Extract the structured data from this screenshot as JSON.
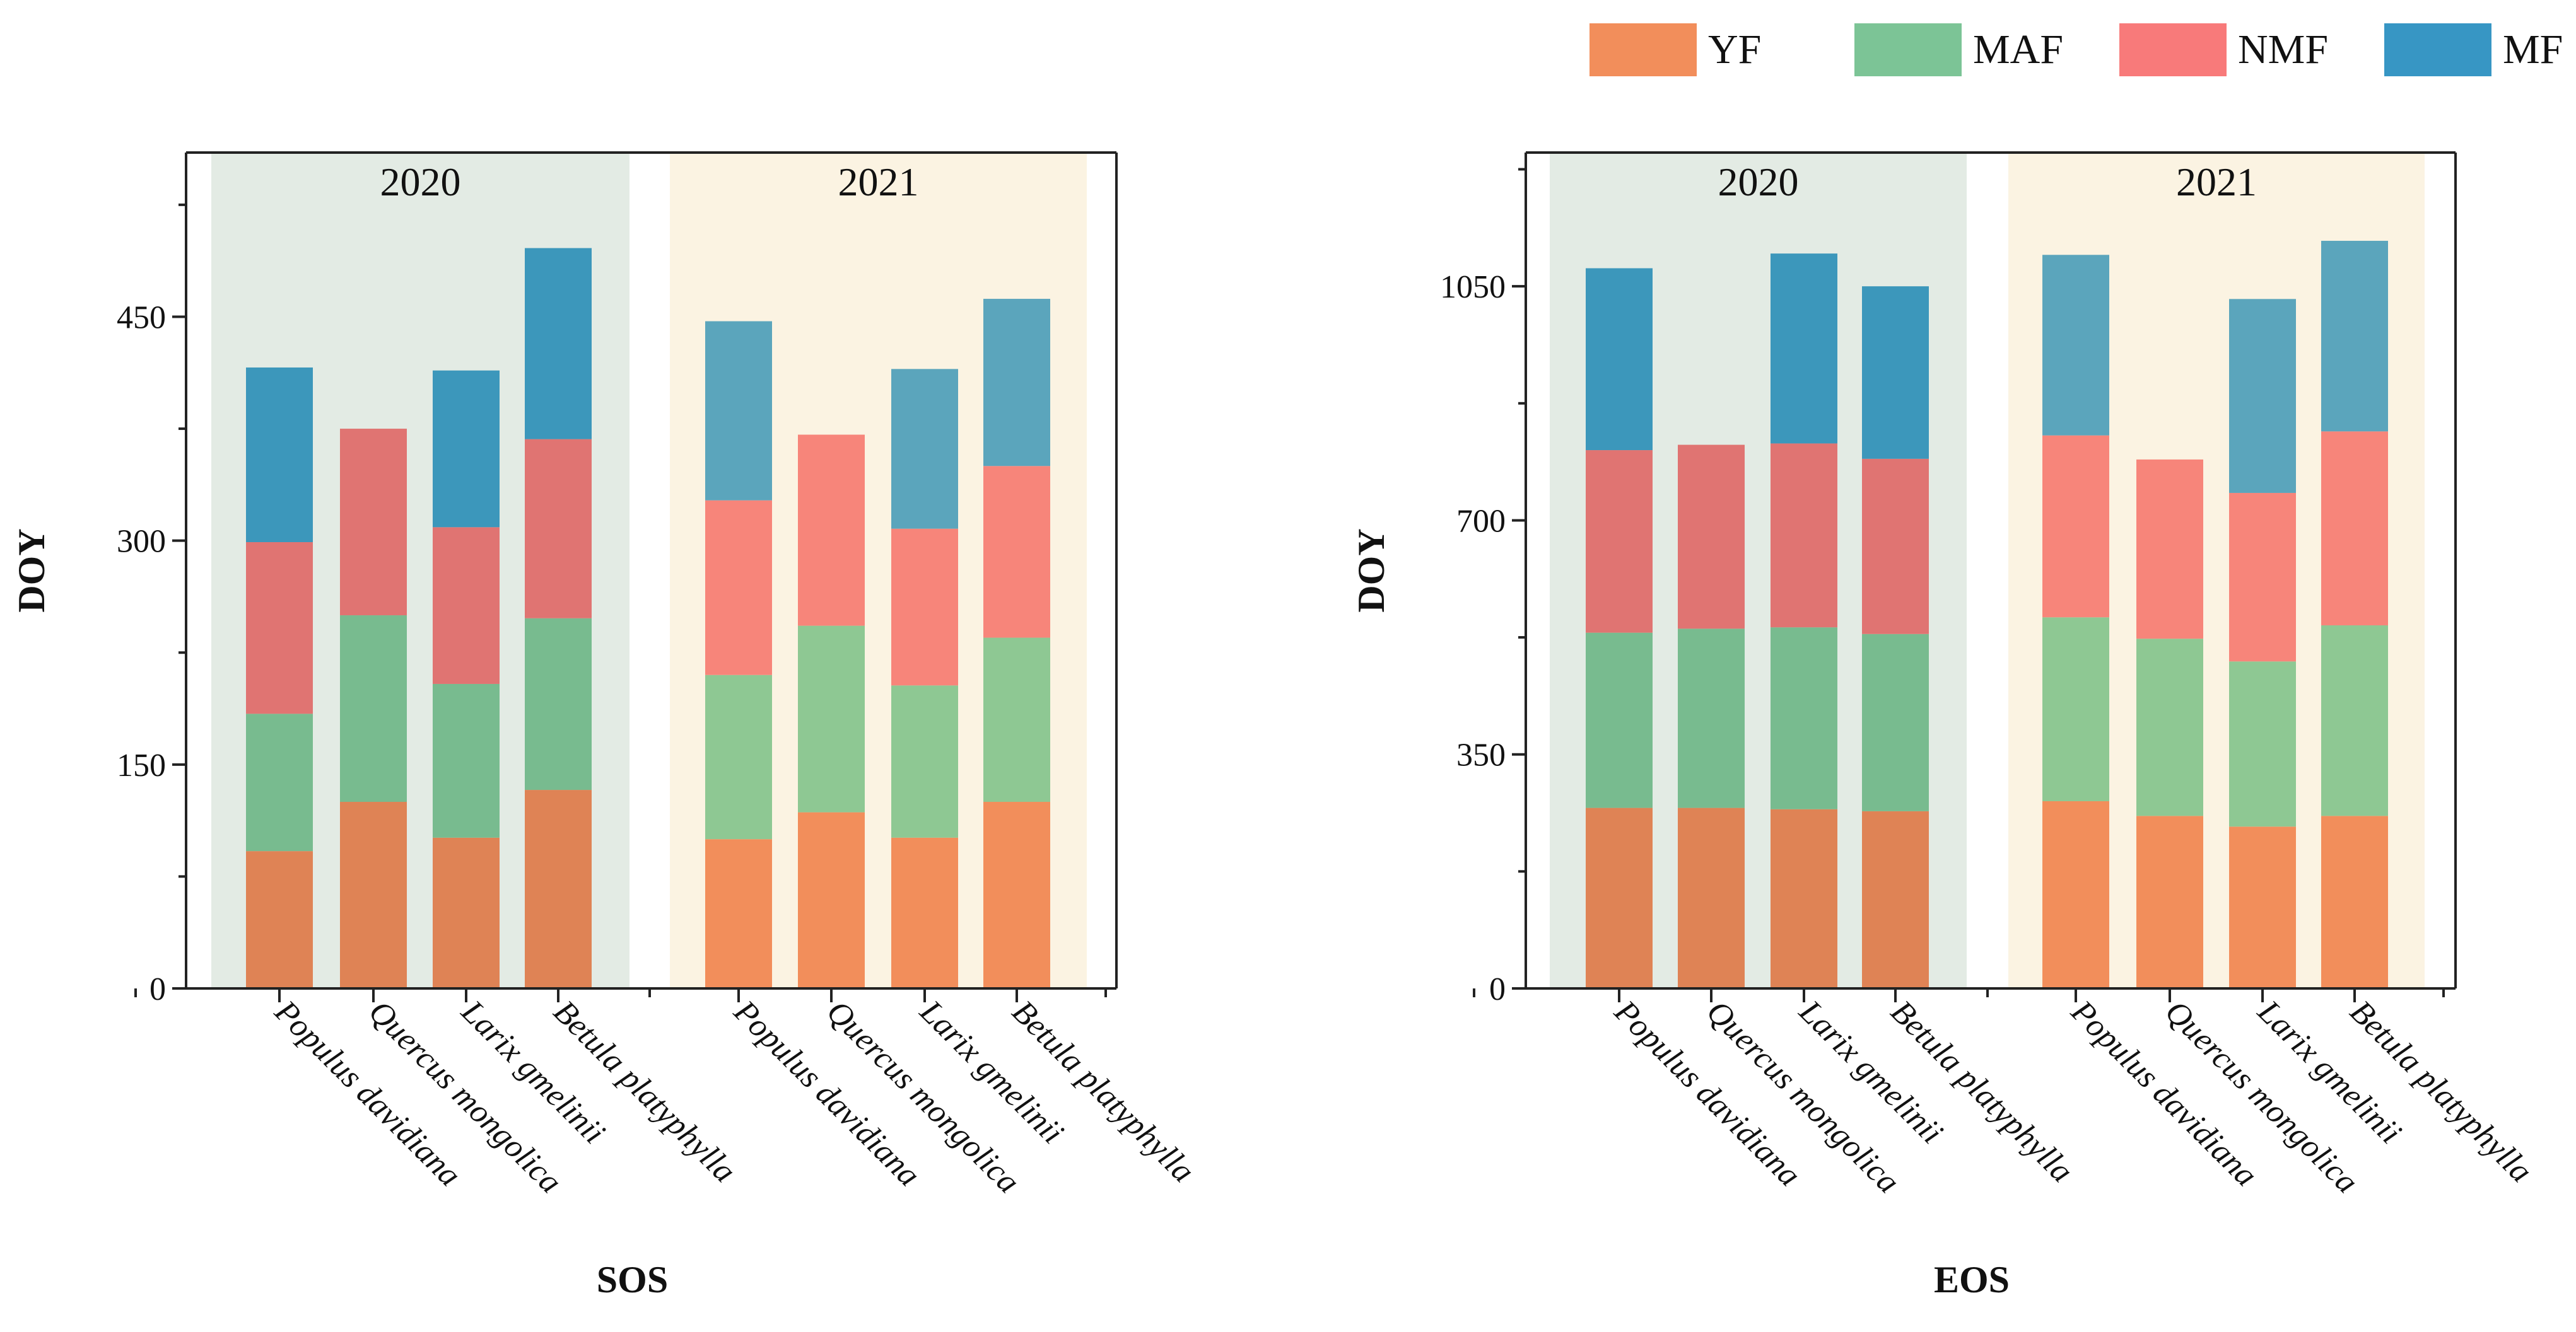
{
  "legend": [
    {
      "key": "YF",
      "label": "YF",
      "color": "#F28E5B"
    },
    {
      "key": "MAF",
      "label": "MAF",
      "color": "#7CC496"
    },
    {
      "key": "NMF",
      "label": "NMF",
      "color": "#F87A7A"
    },
    {
      "key": "MF",
      "label": "MF",
      "color": "#3796C4"
    }
  ],
  "chart_data": [
    {
      "type": "bar",
      "stacked": true,
      "xlabel": "SOS",
      "ylabel": "DOY",
      "ylim": [
        0,
        560
      ],
      "yticks": [
        0,
        150,
        300,
        450
      ],
      "groups": [
        {
          "label": "2020",
          "background": "#E3EBE4",
          "categories": [
            "Populus davidiana",
            "Quercus mongolica",
            "Larix gmelinii",
            "Betula platyphylla"
          ],
          "colors": {
            "YF": "#DF8355",
            "MAF": "#78BB8F",
            "NMF": "#E07472",
            "MF": "#3C97BB"
          },
          "series": [
            {
              "name": "YF",
              "values": [
                92,
                125,
                101,
                133
              ]
            },
            {
              "name": "MAF",
              "values": [
                92,
                125,
                103,
                115
              ]
            },
            {
              "name": "NMF",
              "values": [
                115,
                125,
                105,
                120
              ]
            },
            {
              "name": "MF",
              "values": [
                117,
                0,
                105,
                128
              ]
            }
          ]
        },
        {
          "label": "2021",
          "background": "#FBF3E2",
          "categories": [
            "Populus davidiana",
            "Quercus mongolica",
            "Larix gmelinii",
            "Betula platyphylla"
          ],
          "colors": {
            "YF": "#F28E5B",
            "MAF": "#8EC893",
            "NMF": "#F7857A",
            "MF": "#5BA5BC"
          },
          "series": [
            {
              "name": "YF",
              "values": [
                100,
                118,
                101,
                125
              ]
            },
            {
              "name": "MAF",
              "values": [
                110,
                125,
                102,
                110
              ]
            },
            {
              "name": "NMF",
              "values": [
                117,
                128,
                105,
                115
              ]
            },
            {
              "name": "MF",
              "values": [
                120,
                0,
                107,
                112
              ]
            }
          ]
        }
      ]
    },
    {
      "type": "bar",
      "stacked": true,
      "xlabel": "EOS",
      "ylabel": "DOY",
      "ylim": [
        0,
        1250
      ],
      "yticks": [
        0,
        350,
        700,
        1050
      ],
      "groups": [
        {
          "label": "2020",
          "background": "#E3EBE4",
          "categories": [
            "Populus davidiana",
            "Quercus mongolica",
            "Larix gmelinii",
            "Betula platyphylla"
          ],
          "colors": {
            "YF": "#DF8355",
            "MAF": "#78BB8F",
            "NMF": "#E07472",
            "MF": "#3C97BB"
          },
          "series": [
            {
              "name": "YF",
              "values": [
                270,
                270,
                268,
                265
              ]
            },
            {
              "name": "MAF",
              "values": [
                262,
                268,
                272,
                265
              ]
            },
            {
              "name": "NMF",
              "values": [
                273,
                275,
                275,
                262
              ]
            },
            {
              "name": "MF",
              "values": [
                272,
                0,
                284,
                258
              ]
            }
          ]
        },
        {
          "label": "2021",
          "background": "#FBF3E2",
          "categories": [
            "Populus davidiana",
            "Quercus mongolica",
            "Larix gmelinii",
            "Betula platyphylla"
          ],
          "colors": {
            "YF": "#F28E5B",
            "MAF": "#8EC893",
            "NMF": "#F7857A",
            "MF": "#5BA5BC"
          },
          "series": [
            {
              "name": "YF",
              "values": [
                280,
                258,
                242,
                258
              ]
            },
            {
              "name": "MAF",
              "values": [
                275,
                265,
                247,
                285
              ]
            },
            {
              "name": "NMF",
              "values": [
                272,
                268,
                252,
                290
              ]
            },
            {
              "name": "MF",
              "values": [
                270,
                0,
                290,
                285
              ]
            }
          ]
        }
      ]
    }
  ]
}
